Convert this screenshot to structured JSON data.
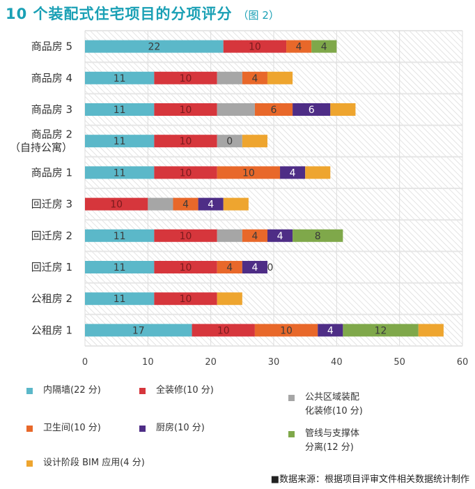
{
  "title": "10 个装配式住宅项目的分项评分",
  "subtitle": "（图 2）",
  "source": "■数据来源：根据项目评审文件相关数据统计制作",
  "chart_data": {
    "type": "bar",
    "orientation": "horizontal",
    "stacked": true,
    "categories": [
      "商品房 5",
      "商品房 4",
      "商品房 3",
      "商品房 2\n（自持公寓）",
      "商品房 1",
      "回迁房 3",
      "回迁房 2",
      "回迁房 1",
      "公租房 2",
      "公租房 1"
    ],
    "series": [
      {
        "name": "内隔墙(22 分)",
        "color": "#5bb8c9",
        "values": [
          22,
          11,
          11,
          11,
          11,
          0,
          11,
          11,
          11,
          17
        ]
      },
      {
        "name": "全装修(10 分)",
        "color": "#d6363c",
        "values": [
          10,
          10,
          10,
          10,
          10,
          10,
          10,
          10,
          10,
          10
        ]
      },
      {
        "name": "公共区域装配化装修(10 分)",
        "color": "#a6a6a6",
        "values": [
          0,
          4,
          6,
          4,
          0,
          4,
          4,
          0,
          0,
          0
        ]
      },
      {
        "name": "卫生间(10 分)",
        "color": "#e8682a",
        "values": [
          4,
          4,
          6,
          0,
          10,
          4,
          4,
          4,
          0,
          10
        ]
      },
      {
        "name": "厨房(10 分)",
        "color": "#4e2d86",
        "values": [
          0,
          0,
          6,
          0,
          4,
          4,
          4,
          4,
          0,
          4
        ]
      },
      {
        "name": "管线与支撑体分离(12 分)",
        "color": "#7fa84a",
        "values": [
          4,
          0,
          0,
          0,
          0,
          0,
          8,
          0,
          0,
          12
        ]
      },
      {
        "name": "设计阶段 BIM 应用(4 分)",
        "color": "#eea52f",
        "values": [
          0,
          4,
          4,
          4,
          4,
          4,
          0,
          0,
          4,
          4
        ]
      }
    ],
    "data_labels": [
      [
        "22",
        "10",
        "",
        "4",
        "0",
        "4",
        ""
      ],
      [
        "11",
        "10",
        "",
        "4",
        "0",
        "",
        ""
      ],
      [
        "11",
        "10",
        "",
        "6",
        "6",
        "0",
        ""
      ],
      [
        "11",
        "10",
        "0",
        "",
        "",
        "",
        ""
      ],
      [
        "11",
        "10",
        "",
        "10",
        "4",
        "0",
        ""
      ],
      [
        "",
        "10",
        "",
        "4",
        "4",
        "0",
        ""
      ],
      [
        "11",
        "10",
        "",
        "4",
        "4",
        "8",
        ""
      ],
      [
        "11",
        "10",
        "",
        "4",
        "4",
        "0",
        ""
      ],
      [
        "11",
        "10",
        "0",
        "",
        "",
        "",
        ""
      ],
      [
        "17",
        "10",
        "",
        "10",
        "4",
        "12",
        ""
      ]
    ],
    "xlim": [
      0,
      60
    ],
    "xticks": [
      0,
      10,
      20,
      30,
      40,
      50,
      60
    ],
    "grid": true,
    "legend_position": "bottom"
  },
  "legend": [
    {
      "label": "内隔墙(22 分)",
      "color": "#5bb8c9"
    },
    {
      "label": "全装修(10 分)",
      "color": "#d6363c"
    },
    {
      "label": "公共区域装配\n化装修(10 分)",
      "color": "#a6a6a6"
    },
    {
      "label": "卫生间(10 分)",
      "color": "#e8682a"
    },
    {
      "label": "厨房(10 分)",
      "color": "#4e2d86"
    },
    {
      "label": "管线与支撑体\n分离(12 分)",
      "color": "#7fa84a"
    },
    {
      "label": "设计阶段 BIM 应用(4 分)",
      "color": "#eea52f"
    }
  ]
}
